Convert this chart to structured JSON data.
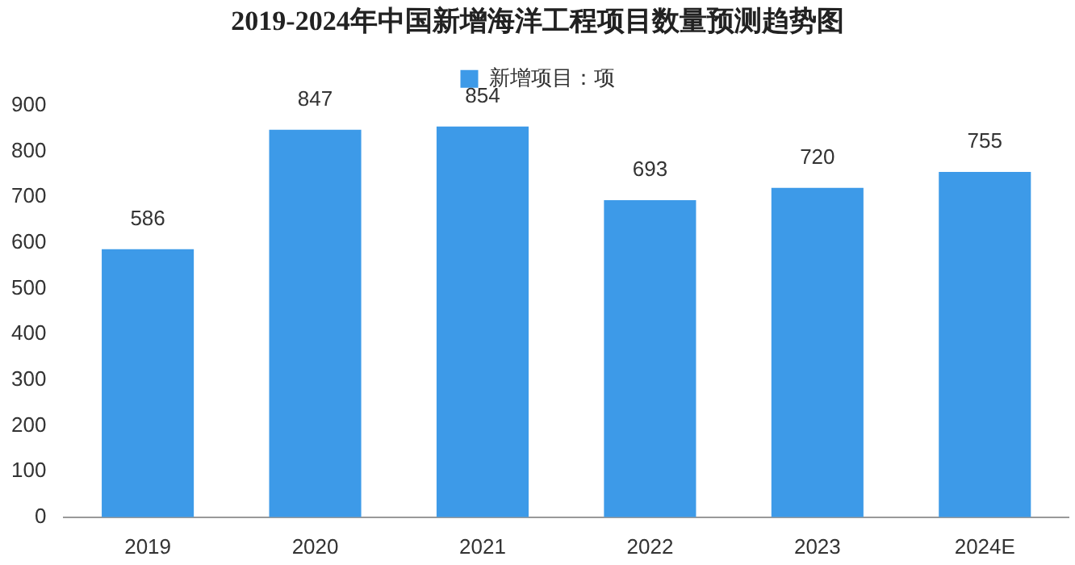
{
  "chart_data": {
    "type": "bar",
    "title": "2019-2024年中国新增海洋工程项目数量预测趋势图",
    "categories": [
      "2019",
      "2020",
      "2021",
      "2022",
      "2023",
      "2024E"
    ],
    "series": [
      {
        "name": "新增项目：项",
        "color": "#3d9ae8",
        "values": [
          586,
          847,
          854,
          693,
          720,
          755
        ]
      }
    ],
    "ylim": [
      0,
      900
    ],
    "yticks": [
      0,
      100,
      200,
      300,
      400,
      500,
      600,
      700,
      800,
      900
    ],
    "data_labels": true,
    "legend": "top",
    "grid": false
  }
}
